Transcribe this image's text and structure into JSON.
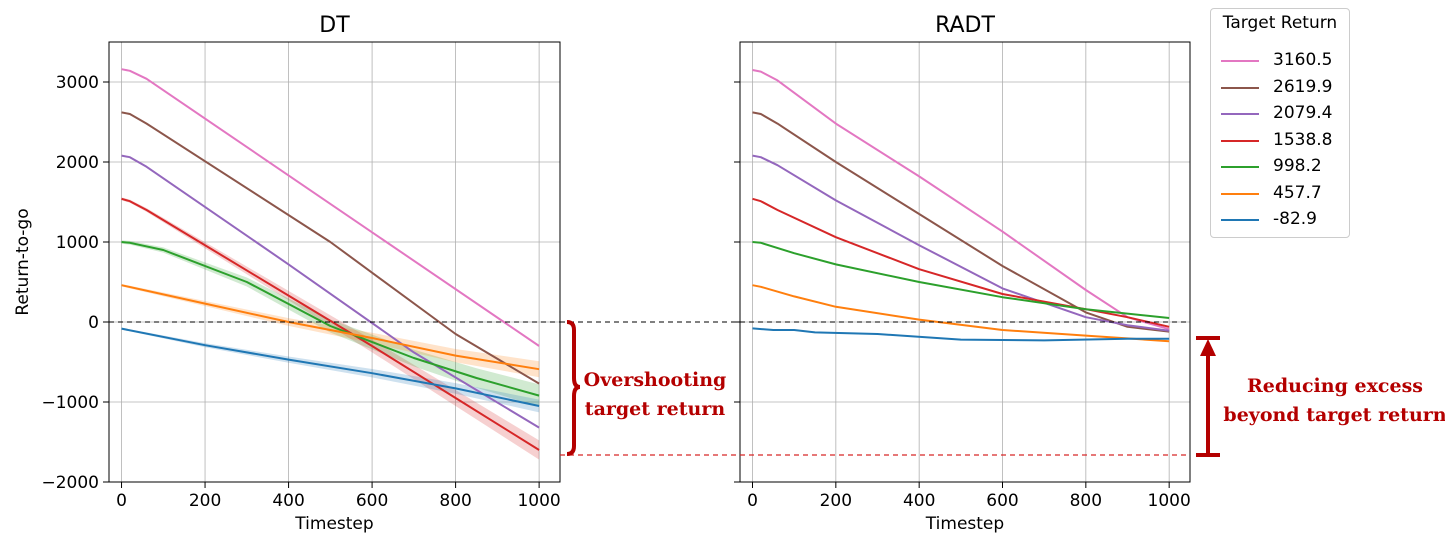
{
  "legend": {
    "title": "Target Return",
    "items": [
      {
        "label": "3160.5",
        "color": "#e377c2"
      },
      {
        "label": "2619.9",
        "color": "#8c564b"
      },
      {
        "label": "2079.4",
        "color": "#9467bd"
      },
      {
        "label": "1538.8",
        "color": "#d62728"
      },
      {
        "label": "998.2",
        "color": "#2ca02c"
      },
      {
        "label": "457.7",
        "color": "#ff7f0e"
      },
      {
        "label": "-82.9",
        "color": "#1f77b4"
      }
    ]
  },
  "annotations": {
    "overshoot": [
      "Overshooting",
      "target return"
    ],
    "reducing": [
      "Reducing excess",
      "beyond target return"
    ],
    "color": "#b40000"
  },
  "chart_data": [
    {
      "type": "line",
      "title": "DT",
      "xlabel": "Timestep",
      "ylabel": "Return-to-go",
      "xlim": [
        -30,
        1050
      ],
      "ylim": [
        -2000,
        3500
      ],
      "xticks": [
        0,
        200,
        400,
        600,
        800,
        1000
      ],
      "yticks": [
        -2000,
        -1000,
        0,
        1000,
        2000,
        3000
      ],
      "ytick_labels": [
        "−2000",
        "−1000",
        "0",
        "1000",
        "2000",
        "3000"
      ],
      "grid": true,
      "hline": 0,
      "series": [
        {
          "name": "3160.5",
          "color": "#e377c2",
          "x": [
            0,
            20,
            60,
            1000
          ],
          "y": [
            3160,
            3140,
            3040,
            -300
          ]
        },
        {
          "name": "2619.9",
          "color": "#8c564b",
          "x": [
            0,
            20,
            60,
            500,
            800,
            1000
          ],
          "y": [
            2620,
            2600,
            2480,
            1000,
            -150,
            -770
          ]
        },
        {
          "name": "2079.4",
          "color": "#9467bd",
          "x": [
            0,
            20,
            60,
            400,
            700,
            1000
          ],
          "y": [
            2080,
            2060,
            1940,
            720,
            -380,
            -1320
          ]
        },
        {
          "name": "1538.8",
          "color": "#d62728",
          "x": [
            0,
            20,
            60,
            400,
            600,
            800,
            1000
          ],
          "y": [
            1540,
            1510,
            1400,
            330,
            -300,
            -950,
            -1600
          ],
          "band": 60
        },
        {
          "name": "998.2",
          "color": "#2ca02c",
          "x": [
            0,
            20,
            100,
            300,
            500,
            700,
            850,
            1000
          ],
          "y": [
            1000,
            990,
            900,
            500,
            -50,
            -450,
            -700,
            -920
          ],
          "band": 70
        },
        {
          "name": "457.7",
          "color": "#ff7f0e",
          "x": [
            0,
            200,
            400,
            600,
            800,
            1000
          ],
          "y": [
            460,
            230,
            0,
            -200,
            -420,
            -590
          ],
          "band": 50
        },
        {
          "name": "-82.9",
          "color": "#1f77b4",
          "x": [
            0,
            200,
            400,
            600,
            800,
            1000
          ],
          "y": [
            -83,
            -290,
            -470,
            -640,
            -830,
            -1050
          ],
          "band": 40
        }
      ]
    },
    {
      "type": "line",
      "title": "RADT",
      "xlabel": "Timestep",
      "ylabel": "",
      "xlim": [
        -30,
        1050
      ],
      "ylim": [
        -2000,
        3500
      ],
      "xticks": [
        0,
        200,
        400,
        600,
        800,
        1000
      ],
      "yticks": [
        -2000,
        -1000,
        0,
        1000,
        2000,
        3000
      ],
      "ytick_labels": [],
      "grid": true,
      "hline": 0,
      "series": [
        {
          "name": "3160.5",
          "color": "#e377c2",
          "x": [
            0,
            20,
            60,
            200,
            400,
            600,
            800,
            900,
            1000
          ],
          "y": [
            3150,
            3130,
            3020,
            2480,
            1820,
            1130,
            400,
            60,
            -90
          ]
        },
        {
          "name": "2619.9",
          "color": "#8c564b",
          "x": [
            0,
            20,
            60,
            200,
            400,
            600,
            800,
            900,
            1000
          ],
          "y": [
            2620,
            2600,
            2480,
            2000,
            1350,
            700,
            120,
            -60,
            -120
          ]
        },
        {
          "name": "2079.4",
          "color": "#9467bd",
          "x": [
            0,
            20,
            60,
            200,
            400,
            600,
            800,
            900,
            1000
          ],
          "y": [
            2080,
            2060,
            1960,
            1520,
            960,
            420,
            60,
            -40,
            -110
          ]
        },
        {
          "name": "1538.8",
          "color": "#d62728",
          "x": [
            0,
            20,
            60,
            200,
            400,
            600,
            800,
            900,
            1000
          ],
          "y": [
            1540,
            1510,
            1400,
            1060,
            660,
            350,
            160,
            60,
            -60
          ]
        },
        {
          "name": "998.2",
          "color": "#2ca02c",
          "x": [
            0,
            20,
            100,
            200,
            400,
            600,
            800,
            1000
          ],
          "y": [
            1000,
            990,
            860,
            720,
            500,
            310,
            160,
            50
          ]
        },
        {
          "name": "457.7",
          "color": "#ff7f0e",
          "x": [
            0,
            20,
            100,
            200,
            400,
            600,
            800,
            1000
          ],
          "y": [
            460,
            440,
            320,
            190,
            30,
            -100,
            -170,
            -240
          ]
        },
        {
          "name": "-82.9",
          "color": "#1f77b4",
          "x": [
            0,
            50,
            100,
            150,
            300,
            500,
            700,
            900,
            1000
          ],
          "y": [
            -80,
            -100,
            -100,
            -130,
            -150,
            -220,
            -230,
            -210,
            -210
          ]
        }
      ]
    }
  ]
}
